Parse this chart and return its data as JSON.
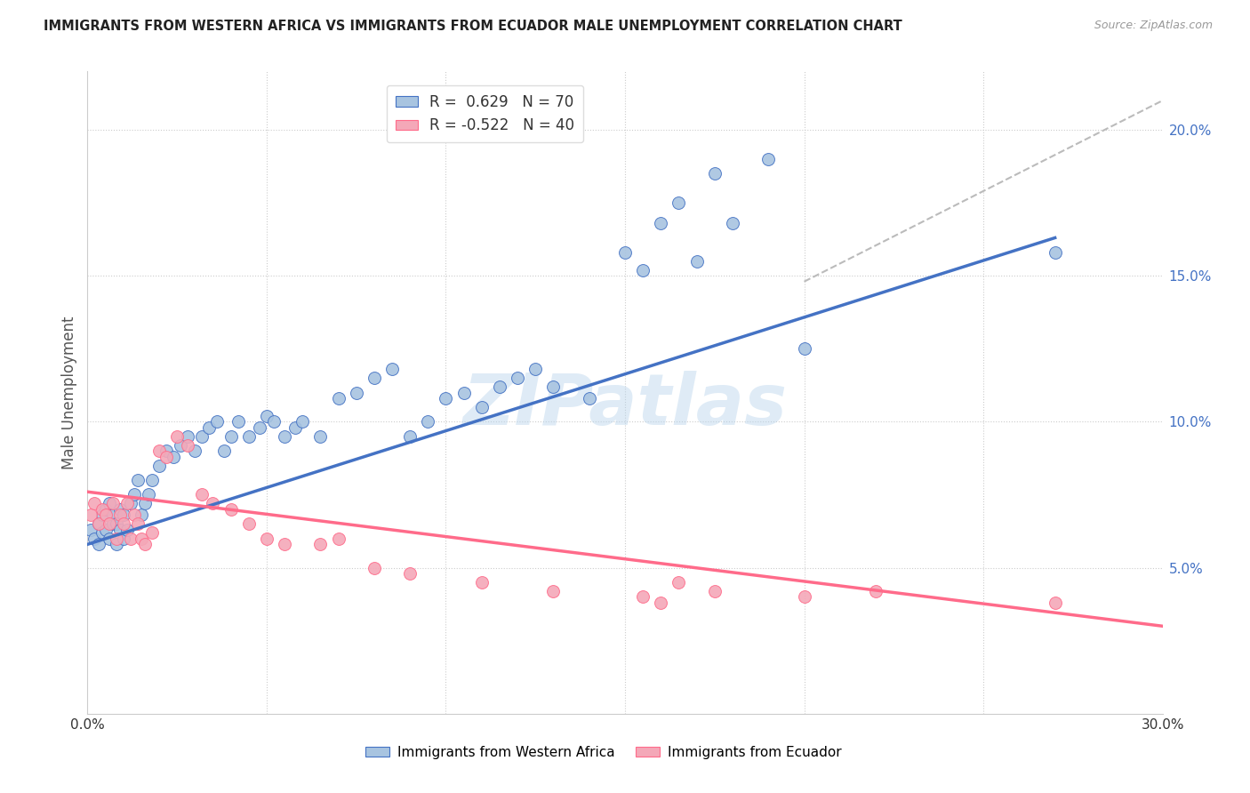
{
  "title": "IMMIGRANTS FROM WESTERN AFRICA VS IMMIGRANTS FROM ECUADOR MALE UNEMPLOYMENT CORRELATION CHART",
  "source": "Source: ZipAtlas.com",
  "ylabel": "Male Unemployment",
  "xlim": [
    0.0,
    0.3
  ],
  "ylim": [
    0.0,
    0.22
  ],
  "color_blue": "#A8C4E0",
  "color_pink": "#F4A8B8",
  "line_color_blue": "#4472C4",
  "line_color_pink": "#FF6B8A",
  "line_color_dashed": "#BBBBBB",
  "watermark": "ZIPatlas",
  "background_color": "#FFFFFF",
  "legend_entry1": "R =  0.629   N = 70",
  "legend_entry2": "R = -0.522   N = 40",
  "blue_line_x": [
    0.0,
    0.27
  ],
  "blue_line_y": [
    0.058,
    0.163
  ],
  "pink_line_x": [
    0.0,
    0.3
  ],
  "pink_line_y": [
    0.076,
    0.03
  ],
  "dash_line_x": [
    0.2,
    0.3
  ],
  "dash_line_y": [
    0.148,
    0.21
  ],
  "blue_scatter_x": [
    0.001,
    0.002,
    0.003,
    0.003,
    0.004,
    0.004,
    0.005,
    0.005,
    0.006,
    0.006,
    0.007,
    0.007,
    0.008,
    0.008,
    0.009,
    0.009,
    0.01,
    0.01,
    0.011,
    0.012,
    0.013,
    0.014,
    0.015,
    0.016,
    0.017,
    0.018,
    0.02,
    0.022,
    0.024,
    0.026,
    0.028,
    0.03,
    0.032,
    0.034,
    0.036,
    0.038,
    0.04,
    0.042,
    0.045,
    0.048,
    0.05,
    0.052,
    0.055,
    0.058,
    0.06,
    0.065,
    0.07,
    0.075,
    0.08,
    0.085,
    0.09,
    0.095,
    0.1,
    0.105,
    0.11,
    0.115,
    0.12,
    0.125,
    0.13,
    0.14,
    0.15,
    0.155,
    0.16,
    0.165,
    0.17,
    0.175,
    0.18,
    0.19,
    0.2,
    0.27
  ],
  "blue_scatter_y": [
    0.063,
    0.06,
    0.058,
    0.065,
    0.062,
    0.068,
    0.063,
    0.07,
    0.06,
    0.072,
    0.065,
    0.068,
    0.058,
    0.065,
    0.063,
    0.07,
    0.06,
    0.068,
    0.063,
    0.072,
    0.075,
    0.08,
    0.068,
    0.072,
    0.075,
    0.08,
    0.085,
    0.09,
    0.088,
    0.092,
    0.095,
    0.09,
    0.095,
    0.098,
    0.1,
    0.09,
    0.095,
    0.1,
    0.095,
    0.098,
    0.102,
    0.1,
    0.095,
    0.098,
    0.1,
    0.095,
    0.108,
    0.11,
    0.115,
    0.118,
    0.095,
    0.1,
    0.108,
    0.11,
    0.105,
    0.112,
    0.115,
    0.118,
    0.112,
    0.108,
    0.158,
    0.152,
    0.168,
    0.175,
    0.155,
    0.185,
    0.168,
    0.19,
    0.125,
    0.158
  ],
  "pink_scatter_x": [
    0.001,
    0.002,
    0.003,
    0.004,
    0.005,
    0.006,
    0.007,
    0.008,
    0.009,
    0.01,
    0.011,
    0.012,
    0.013,
    0.014,
    0.015,
    0.016,
    0.018,
    0.02,
    0.022,
    0.025,
    0.028,
    0.032,
    0.035,
    0.04,
    0.045,
    0.05,
    0.055,
    0.065,
    0.07,
    0.08,
    0.09,
    0.11,
    0.13,
    0.155,
    0.16,
    0.165,
    0.175,
    0.2,
    0.22,
    0.27
  ],
  "pink_scatter_y": [
    0.068,
    0.072,
    0.065,
    0.07,
    0.068,
    0.065,
    0.072,
    0.06,
    0.068,
    0.065,
    0.072,
    0.06,
    0.068,
    0.065,
    0.06,
    0.058,
    0.062,
    0.09,
    0.088,
    0.095,
    0.092,
    0.075,
    0.072,
    0.07,
    0.065,
    0.06,
    0.058,
    0.058,
    0.06,
    0.05,
    0.048,
    0.045,
    0.042,
    0.04,
    0.038,
    0.045,
    0.042,
    0.04,
    0.042,
    0.038
  ]
}
